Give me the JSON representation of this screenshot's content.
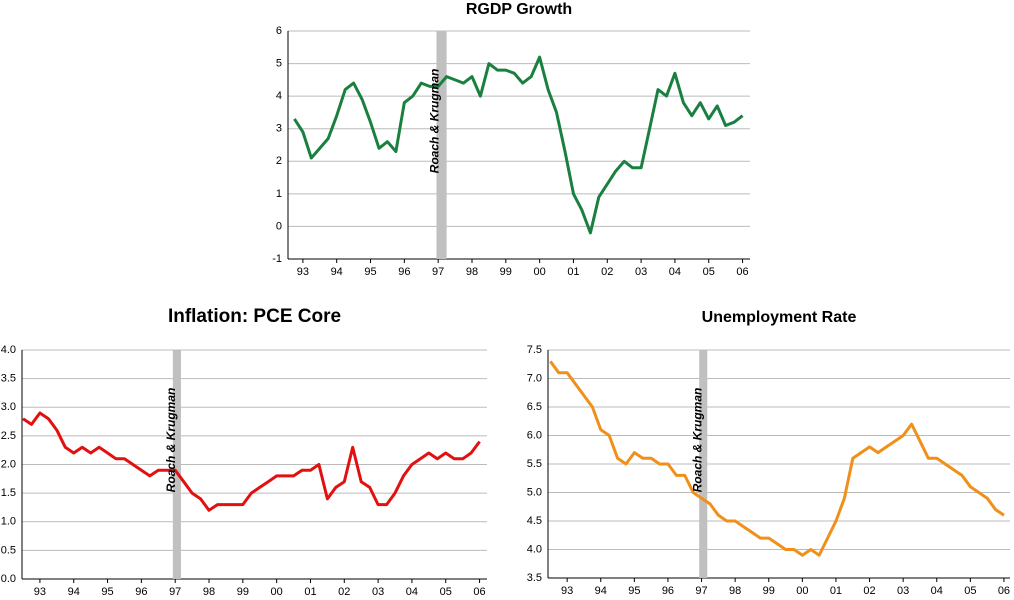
{
  "chart_data": [
    {
      "type": "line",
      "title": "RGDP Growth",
      "annotation": "Roach & Krugman",
      "shade": [
        1996.95,
        1997.25
      ],
      "x": [
        1992.75,
        1993,
        1993.25,
        1993.5,
        1993.75,
        1994,
        1994.25,
        1994.5,
        1994.75,
        1995,
        1995.25,
        1995.5,
        1995.75,
        1996,
        1996.25,
        1996.5,
        1996.75,
        1997,
        1997.25,
        1997.5,
        1997.75,
        1998,
        1998.25,
        1998.5,
        1998.75,
        1999,
        1999.25,
        1999.5,
        1999.75,
        2000,
        2000.25,
        2000.5,
        2000.75,
        2001,
        2001.25,
        2001.5,
        2001.75,
        2002,
        2002.25,
        2002.5,
        2002.75,
        2003,
        2003.25,
        2003.5,
        2003.75,
        2004,
        2004.25,
        2004.5,
        2004.75,
        2005,
        2005.25,
        2005.5,
        2005.75,
        2006
      ],
      "series": [
        {
          "name": null,
          "color": "#1a8040",
          "values": [
            3.3,
            2.9,
            2.1,
            2.4,
            2.7,
            3.4,
            4.2,
            4.4,
            3.9,
            3.2,
            2.4,
            2.6,
            2.3,
            3.8,
            4.0,
            4.4,
            4.3,
            4.3,
            4.6,
            4.5,
            4.4,
            4.6,
            4.0,
            5.0,
            4.8,
            4.8,
            4.7,
            4.4,
            4.6,
            5.2,
            4.2,
            3.5,
            2.3,
            1.0,
            0.5,
            -0.2,
            0.9,
            1.3,
            1.7,
            2.0,
            1.8,
            1.8,
            3.0,
            4.2,
            4.0,
            4.7,
            3.8,
            3.4,
            3.8,
            3.3,
            3.7,
            3.1,
            3.2,
            3.4
          ]
        }
      ],
      "xlim": [
        1992.56,
        2006.22
      ],
      "xticks": [
        {
          "value": 1993,
          "label": "93"
        },
        {
          "value": 1994,
          "label": "94"
        },
        {
          "value": 1995,
          "label": "95"
        },
        {
          "value": 1996,
          "label": "96"
        },
        {
          "value": 1997,
          "label": "97"
        },
        {
          "value": 1998,
          "label": "98"
        },
        {
          "value": 1999,
          "label": "99"
        },
        {
          "value": 2000,
          "label": "00"
        },
        {
          "value": 2001,
          "label": "01"
        },
        {
          "value": 2002,
          "label": "02"
        },
        {
          "value": 2003,
          "label": "03"
        },
        {
          "value": 2004,
          "label": "04"
        },
        {
          "value": 2005,
          "label": "05"
        },
        {
          "value": 2006,
          "label": "06"
        }
      ],
      "ylim": [
        -1,
        6
      ],
      "yticks": [
        -1,
        0,
        1,
        2,
        3,
        4,
        5,
        6
      ],
      "grid": true
    },
    {
      "type": "line",
      "title": "Inflation: PCE Core",
      "annotation": "Roach & Krugman",
      "shade": [
        1996.93,
        1997.17
      ],
      "x": [
        1992.5,
        1992.75,
        1993,
        1993.25,
        1993.5,
        1993.75,
        1994,
        1994.25,
        1994.5,
        1994.75,
        1995,
        1995.25,
        1995.5,
        1995.75,
        1996,
        1996.25,
        1996.5,
        1996.75,
        1997,
        1997.25,
        1997.5,
        1997.75,
        1998,
        1998.25,
        1998.5,
        1998.75,
        1999,
        1999.25,
        1999.5,
        1999.75,
        2000,
        2000.25,
        2000.5,
        2000.75,
        2001,
        2001.25,
        2001.5,
        2001.75,
        2002,
        2002.25,
        2002.5,
        2002.75,
        2003,
        2003.25,
        2003.5,
        2003.75,
        2004,
        2004.25,
        2004.5,
        2004.75,
        2005,
        2005.25,
        2005.5,
        2005.75,
        2006
      ],
      "series": [
        {
          "name": null,
          "color": "#e31010",
          "values": [
            2.8,
            2.7,
            2.9,
            2.8,
            2.6,
            2.3,
            2.2,
            2.3,
            2.2,
            2.3,
            2.2,
            2.1,
            2.1,
            2.0,
            1.9,
            1.8,
            1.9,
            1.9,
            1.9,
            1.7,
            1.5,
            1.4,
            1.2,
            1.3,
            1.3,
            1.3,
            1.3,
            1.5,
            1.6,
            1.7,
            1.8,
            1.8,
            1.8,
            1.9,
            1.9,
            2.0,
            1.4,
            1.6,
            1.7,
            2.3,
            1.7,
            1.6,
            1.3,
            1.3,
            1.5,
            1.8,
            2.0,
            2.1,
            2.2,
            2.1,
            2.2,
            2.1,
            2.1,
            2.2,
            2.4
          ]
        }
      ],
      "xlim": [
        1992.47,
        2006.22
      ],
      "xticks": [
        {
          "value": 1993,
          "label": "93"
        },
        {
          "value": 1994,
          "label": "94"
        },
        {
          "value": 1995,
          "label": "95"
        },
        {
          "value": 1996,
          "label": "96"
        },
        {
          "value": 1997,
          "label": "97"
        },
        {
          "value": 1998,
          "label": "98"
        },
        {
          "value": 1999,
          "label": "99"
        },
        {
          "value": 2000,
          "label": "00"
        },
        {
          "value": 2001,
          "label": "01"
        },
        {
          "value": 2002,
          "label": "02"
        },
        {
          "value": 2003,
          "label": "03"
        },
        {
          "value": 2004,
          "label": "04"
        },
        {
          "value": 2005,
          "label": "05"
        },
        {
          "value": 2006,
          "label": "06"
        }
      ],
      "ylim": [
        0,
        4
      ],
      "yticks": [
        {
          "value": 0,
          "label": "0.0"
        },
        0.5,
        {
          "value": 1,
          "label": "1.0"
        },
        1.5,
        {
          "value": 2,
          "label": "2.0"
        },
        2.5,
        {
          "value": 3,
          "label": "3.0"
        },
        3.5,
        {
          "value": 4,
          "label": "4.0"
        }
      ],
      "grid": true
    },
    {
      "type": "line",
      "title": "Unemployment Rate",
      "annotation": "Roach & Krugman",
      "shade": [
        1996.93,
        1997.17
      ],
      "x": [
        1992.5,
        1992.75,
        1993,
        1993.25,
        1993.5,
        1993.75,
        1994,
        1994.25,
        1994.5,
        1994.75,
        1995,
        1995.25,
        1995.5,
        1995.75,
        1996,
        1996.25,
        1996.5,
        1996.75,
        1997,
        1997.25,
        1997.5,
        1997.75,
        1998,
        1998.25,
        1998.5,
        1998.75,
        1999,
        1999.25,
        1999.5,
        1999.75,
        2000,
        2000.25,
        2000.5,
        2000.75,
        2001,
        2001.25,
        2001.5,
        2001.75,
        2002,
        2002.25,
        2002.5,
        2002.75,
        2003,
        2003.25,
        2003.5,
        2003.75,
        2004,
        2004.25,
        2004.5,
        2004.75,
        2005,
        2005.25,
        2005.5,
        2005.75,
        2006
      ],
      "series": [
        {
          "name": null,
          "color": "#f0901a",
          "values": [
            7.3,
            7.1,
            7.1,
            6.9,
            6.7,
            6.5,
            6.1,
            6.0,
            5.6,
            5.5,
            5.7,
            5.6,
            5.6,
            5.5,
            5.5,
            5.3,
            5.3,
            5.0,
            4.9,
            4.8,
            4.6,
            4.5,
            4.5,
            4.4,
            4.3,
            4.2,
            4.2,
            4.1,
            4.0,
            4.0,
            3.9,
            4.0,
            3.9,
            4.2,
            4.5,
            4.9,
            5.6,
            5.7,
            5.8,
            5.7,
            5.8,
            5.9,
            6.0,
            6.2,
            5.9,
            5.6,
            5.6,
            5.5,
            5.4,
            5.3,
            5.1,
            5.0,
            4.9,
            4.7,
            4.6
          ]
        }
      ],
      "xlim": [
        1992.43,
        2006.18
      ],
      "xticks": [
        {
          "value": 1993,
          "label": "93"
        },
        {
          "value": 1994,
          "label": "94"
        },
        {
          "value": 1995,
          "label": "95"
        },
        {
          "value": 1996,
          "label": "96"
        },
        {
          "value": 1997,
          "label": "97"
        },
        {
          "value": 1998,
          "label": "98"
        },
        {
          "value": 1999,
          "label": "99"
        },
        {
          "value": 2000,
          "label": "00"
        },
        {
          "value": 2001,
          "label": "01"
        },
        {
          "value": 2002,
          "label": "02"
        },
        {
          "value": 2003,
          "label": "03"
        },
        {
          "value": 2004,
          "label": "04"
        },
        {
          "value": 2005,
          "label": "05"
        },
        {
          "value": 2006,
          "label": "06"
        }
      ],
      "ylim": [
        3.5,
        7.5
      ],
      "yticks": [
        3.5,
        {
          "value": 4,
          "label": "4.0"
        },
        4.5,
        {
          "value": 5,
          "label": "5.0"
        },
        5.5,
        {
          "value": 6,
          "label": "6.0"
        },
        6.5,
        {
          "value": 7,
          "label": "7.0"
        },
        7.5
      ],
      "grid": true
    }
  ]
}
